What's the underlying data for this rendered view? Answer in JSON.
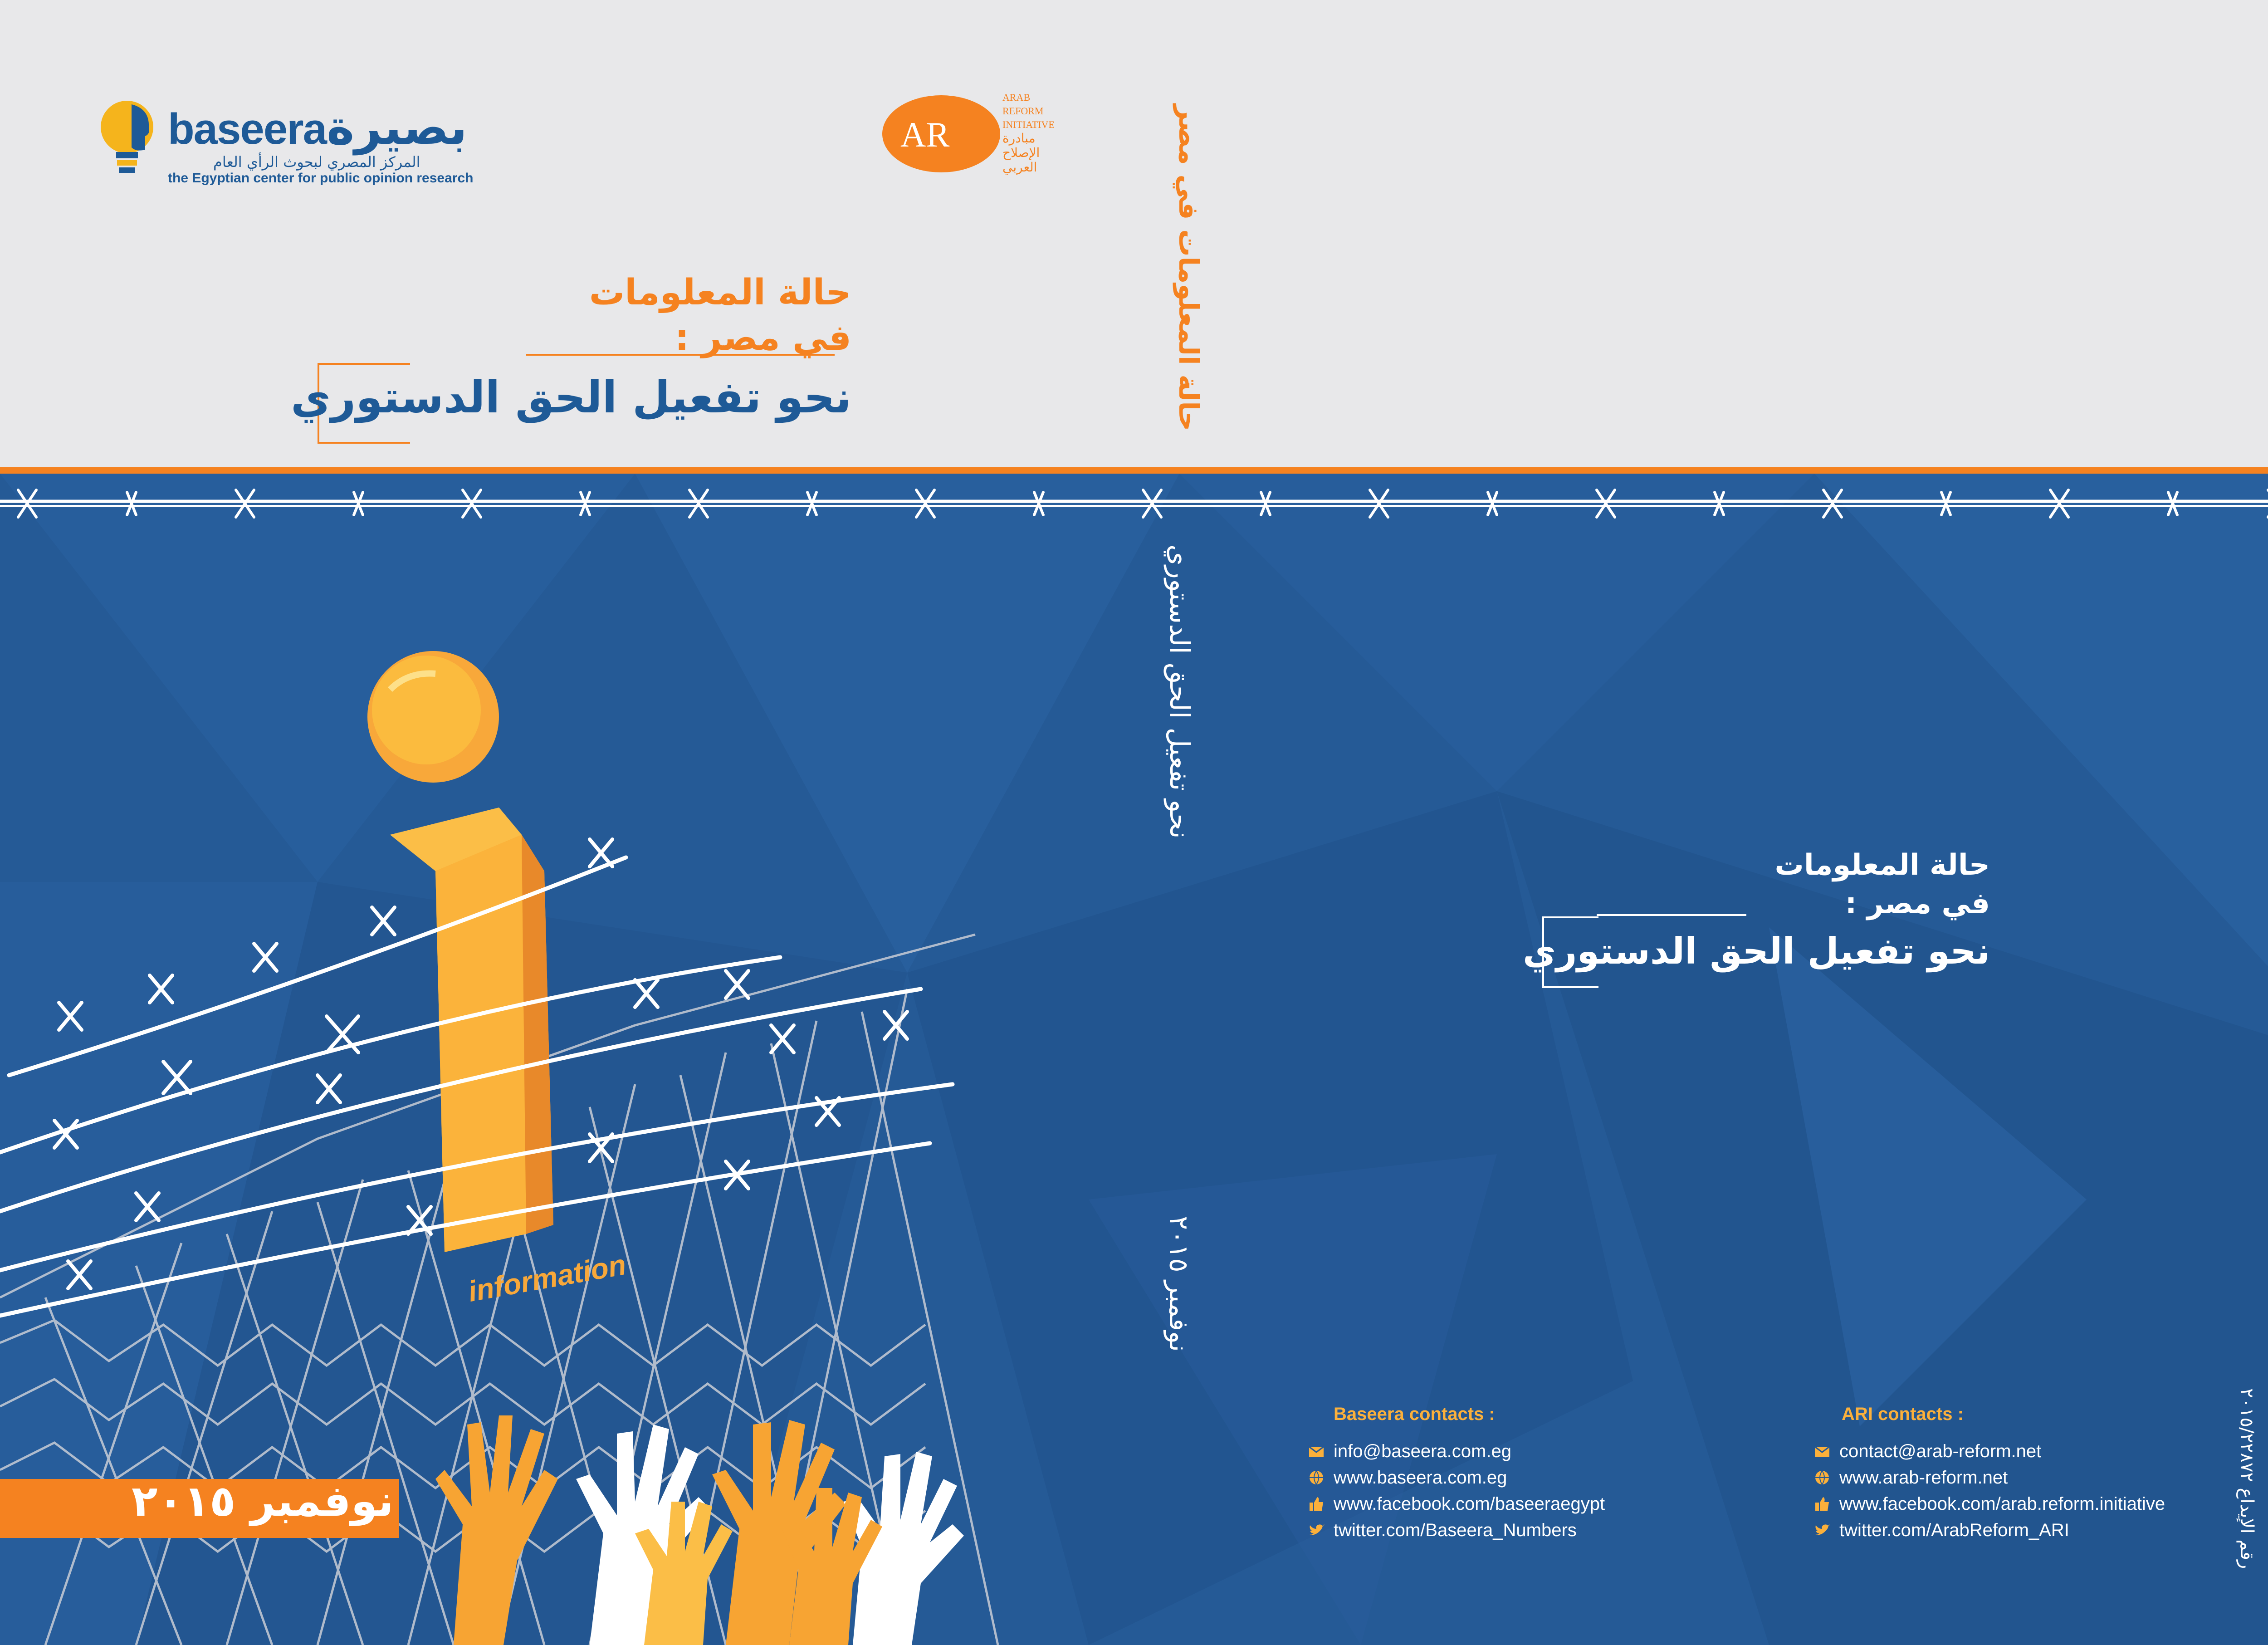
{
  "back_cover": {
    "baseera_logo": {
      "name_en": "baseera",
      "name_ar": "بصيرة",
      "tagline_ar": "المركز المصري لبحوث الرأي العام",
      "tagline_en": "the Egyptian center for public opinion research"
    },
    "ari_logo": {
      "mark": "AR",
      "name_en_1": "ARAB",
      "name_en_2": "REFORM",
      "name_en_3": "INITIATIVE",
      "name_ar_1": "مبادرة",
      "name_ar_2": "الإصلاح",
      "name_ar_3": "العربي"
    },
    "title": {
      "line1": "حالة المعلومات",
      "line2": "في مصر :",
      "line3": "نحو تفعيل الحق الدستوري"
    },
    "baseera_contacts": {
      "heading": "Baseera contacts :",
      "email": "info@baseera.com.eg",
      "web": "www.baseera.com.eg",
      "facebook": "www.facebook.com/baseeraegypt",
      "twitter": "twitter.com/Baseera_Numbers"
    }
  },
  "spine": {
    "title_top": "حالة المعلومات في مصر",
    "title_bottom": "نحو تفعيل الحق الدستوري",
    "date": "نوفمبر ٢٠١٥"
  },
  "front_cover": {
    "title": {
      "line1": "حالة المعلومات",
      "line2": "في مصر :",
      "line3": "نحو تفعيل الحق الدستوري"
    },
    "ari_contacts": {
      "heading": "ARI contacts :",
      "email": "contact@arab-reform.net",
      "web": "www.arab-reform.net",
      "facebook": "www.facebook.com/arab.reform.initiative",
      "twitter": "twitter.com/ArabReform_ARI"
    },
    "deposit_number": "رقم الإيداع ٢٠١٥/٢٢٨٧٢"
  },
  "illustration": {
    "info_label": "information",
    "date": "نوفمبر ٢٠١٥"
  },
  "colors": {
    "orange": "#f58220",
    "blue": "#255a96",
    "yellow": "#fbb03b",
    "light_bg": "#e8e8ea"
  }
}
